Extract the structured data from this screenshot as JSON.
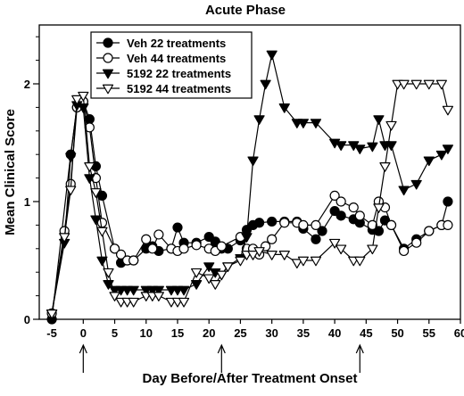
{
  "chart_data": {
    "type": "line",
    "title": "Acute Phase",
    "xlabel": "Day Before/After Treatment Onset",
    "ylabel": "Mean Clinical Score",
    "xlim": [
      -7,
      60
    ],
    "ylim": [
      0,
      2.5
    ],
    "x_ticks": [
      "-5",
      "0",
      "5",
      "10",
      "15",
      "20",
      "25",
      "30",
      "35",
      "40",
      "45",
      "50",
      "55",
      "60"
    ],
    "y_ticks": [
      "0",
      "1",
      "2"
    ],
    "legend_position": "top-left",
    "grid": false,
    "arrows_at_days": [
      0,
      22,
      44
    ],
    "series": [
      {
        "name": "Veh 22 treatments",
        "marker": "circle-filled",
        "points": [
          [
            -5,
            0.0
          ],
          [
            -2,
            1.4
          ],
          [
            -1,
            1.8
          ],
          [
            0,
            1.85
          ],
          [
            1,
            1.7
          ],
          [
            2,
            1.3
          ],
          [
            3,
            1.05
          ],
          [
            5,
            0.6
          ],
          [
            6,
            0.48
          ],
          [
            7,
            0.5
          ],
          [
            8,
            0.5
          ],
          [
            10,
            0.6
          ],
          [
            11,
            0.62
          ],
          [
            12,
            0.58
          ],
          [
            14,
            0.6
          ],
          [
            15,
            0.78
          ],
          [
            16,
            0.65
          ],
          [
            18,
            0.65
          ],
          [
            20,
            0.7
          ],
          [
            21,
            0.66
          ],
          [
            22,
            0.6
          ],
          [
            23,
            0.6
          ],
          [
            25,
            0.67
          ],
          [
            26,
            0.76
          ],
          [
            27,
            0.8
          ],
          [
            28,
            0.82
          ],
          [
            30,
            0.83
          ],
          [
            32,
            0.83
          ],
          [
            34,
            0.83
          ],
          [
            35,
            0.77
          ],
          [
            37,
            0.68
          ],
          [
            38,
            0.75
          ],
          [
            40,
            0.92
          ],
          [
            41,
            0.88
          ],
          [
            43,
            0.85
          ],
          [
            44,
            0.82
          ],
          [
            46,
            0.76
          ],
          [
            47,
            0.75
          ],
          [
            48,
            0.84
          ],
          [
            49,
            0.8
          ],
          [
            51,
            0.6
          ],
          [
            53,
            0.68
          ],
          [
            55,
            0.75
          ],
          [
            57,
            0.8
          ],
          [
            58,
            1.0
          ]
        ]
      },
      {
        "name": "Veh 44 treatments",
        "marker": "circle-open",
        "points": [
          [
            -5,
            0.05
          ],
          [
            -3,
            0.75
          ],
          [
            -2,
            1.15
          ],
          [
            -1,
            1.8
          ],
          [
            0,
            1.85
          ],
          [
            1,
            1.63
          ],
          [
            2,
            1.2
          ],
          [
            3,
            0.82
          ],
          [
            5,
            0.6
          ],
          [
            6,
            0.55
          ],
          [
            7,
            0.5
          ],
          [
            8,
            0.5
          ],
          [
            10,
            0.68
          ],
          [
            11,
            0.6
          ],
          [
            12,
            0.72
          ],
          [
            14,
            0.6
          ],
          [
            15,
            0.58
          ],
          [
            16,
            0.6
          ],
          [
            18,
            0.63
          ],
          [
            20,
            0.6
          ],
          [
            21,
            0.58
          ],
          [
            22,
            0.62
          ],
          [
            25,
            0.7
          ],
          [
            26,
            0.6
          ],
          [
            27,
            0.6
          ],
          [
            28,
            0.55
          ],
          [
            29,
            0.62
          ],
          [
            30,
            0.68
          ],
          [
            32,
            0.82
          ],
          [
            34,
            0.82
          ],
          [
            35,
            0.8
          ],
          [
            37,
            0.8
          ],
          [
            40,
            1.05
          ],
          [
            41,
            1.0
          ],
          [
            43,
            0.95
          ],
          [
            44,
            0.88
          ],
          [
            46,
            0.8
          ],
          [
            47,
            1.0
          ],
          [
            48,
            0.95
          ],
          [
            49,
            0.8
          ],
          [
            51,
            0.58
          ],
          [
            53,
            0.65
          ],
          [
            55,
            0.75
          ],
          [
            57,
            0.8
          ],
          [
            58,
            0.8
          ]
        ]
      },
      {
        "name": "5192 22 treatments",
        "marker": "triangle-down-filled",
        "points": [
          [
            -5,
            0.05
          ],
          [
            -3,
            0.65
          ],
          [
            -2,
            1.38
          ],
          [
            -1,
            1.82
          ],
          [
            0,
            1.8
          ],
          [
            1,
            1.2
          ],
          [
            2,
            0.85
          ],
          [
            3,
            0.5
          ],
          [
            4,
            0.3
          ],
          [
            5,
            0.25
          ],
          [
            6,
            0.25
          ],
          [
            7,
            0.25
          ],
          [
            8,
            0.25
          ],
          [
            10,
            0.25
          ],
          [
            11,
            0.25
          ],
          [
            12,
            0.25
          ],
          [
            14,
            0.25
          ],
          [
            15,
            0.25
          ],
          [
            16,
            0.25
          ],
          [
            18,
            0.3
          ],
          [
            20,
            0.45
          ],
          [
            21,
            0.4
          ],
          [
            22,
            0.38
          ],
          [
            23,
            0.45
          ],
          [
            25,
            0.52
          ],
          [
            26,
            0.7
          ],
          [
            27,
            1.35
          ],
          [
            28,
            1.7
          ],
          [
            29,
            2.0
          ],
          [
            30,
            2.25
          ],
          [
            32,
            1.8
          ],
          [
            34,
            1.67
          ],
          [
            35,
            1.67
          ],
          [
            37,
            1.67
          ],
          [
            40,
            1.5
          ],
          [
            41,
            1.48
          ],
          [
            43,
            1.48
          ],
          [
            44,
            1.45
          ],
          [
            46,
            1.47
          ],
          [
            47,
            1.7
          ],
          [
            48,
            1.48
          ],
          [
            49,
            1.48
          ],
          [
            51,
            1.1
          ],
          [
            53,
            1.15
          ],
          [
            55,
            1.35
          ],
          [
            57,
            1.4
          ],
          [
            58,
            1.45
          ]
        ]
      },
      {
        "name": "5192 44 treatments",
        "marker": "triangle-down-open",
        "points": [
          [
            -5,
            0.05
          ],
          [
            -3,
            0.7
          ],
          [
            -2,
            1.1
          ],
          [
            -1,
            1.87
          ],
          [
            0,
            1.9
          ],
          [
            1,
            1.3
          ],
          [
            2,
            1.08
          ],
          [
            3,
            0.75
          ],
          [
            4,
            0.4
          ],
          [
            5,
            0.2
          ],
          [
            6,
            0.15
          ],
          [
            7,
            0.15
          ],
          [
            8,
            0.15
          ],
          [
            10,
            0.2
          ],
          [
            11,
            0.2
          ],
          [
            12,
            0.2
          ],
          [
            14,
            0.15
          ],
          [
            15,
            0.15
          ],
          [
            16,
            0.15
          ],
          [
            18,
            0.4
          ],
          [
            20,
            0.35
          ],
          [
            21,
            0.3
          ],
          [
            22,
            0.38
          ],
          [
            23,
            0.45
          ],
          [
            25,
            0.5
          ],
          [
            26,
            0.55
          ],
          [
            27,
            0.55
          ],
          [
            28,
            0.58
          ],
          [
            30,
            0.55
          ],
          [
            32,
            0.55
          ],
          [
            34,
            0.48
          ],
          [
            35,
            0.5
          ],
          [
            37,
            0.5
          ],
          [
            40,
            0.65
          ],
          [
            41,
            0.6
          ],
          [
            43,
            0.5
          ],
          [
            44,
            0.5
          ],
          [
            46,
            0.6
          ],
          [
            47,
            0.95
          ],
          [
            48,
            1.3
          ],
          [
            49,
            1.65
          ],
          [
            50,
            2.0
          ],
          [
            51,
            2.0
          ],
          [
            53,
            2.0
          ],
          [
            55,
            2.0
          ],
          [
            57,
            2.0
          ],
          [
            58,
            1.78
          ]
        ]
      }
    ]
  }
}
